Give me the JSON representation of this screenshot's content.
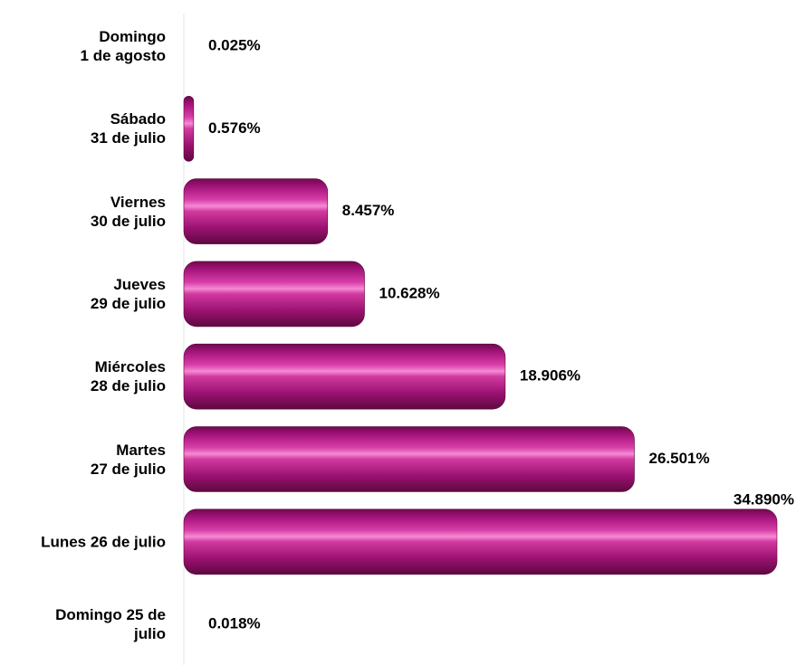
{
  "chart_data": {
    "type": "bar",
    "categories": [
      "Domingo\n1 de agosto",
      "Sábado\n31 de julio",
      "Viernes\n30 de julio",
      "Jueves\n29 de julio",
      "Miércoles\n28 de julio",
      "Martes\n27 de julio",
      "Lunes 26 de julio",
      "Domingo 25 de\njulio"
    ],
    "values": [
      0.025,
      0.576,
      8.457,
      10.628,
      18.906,
      26.501,
      34.89,
      0.018
    ],
    "value_labels": [
      "0.025%",
      "0.576%",
      "8.457%",
      "10.628%",
      "18.906%",
      "26.501%",
      "34.890%",
      "0.018%"
    ],
    "color": "#a3137a"
  }
}
